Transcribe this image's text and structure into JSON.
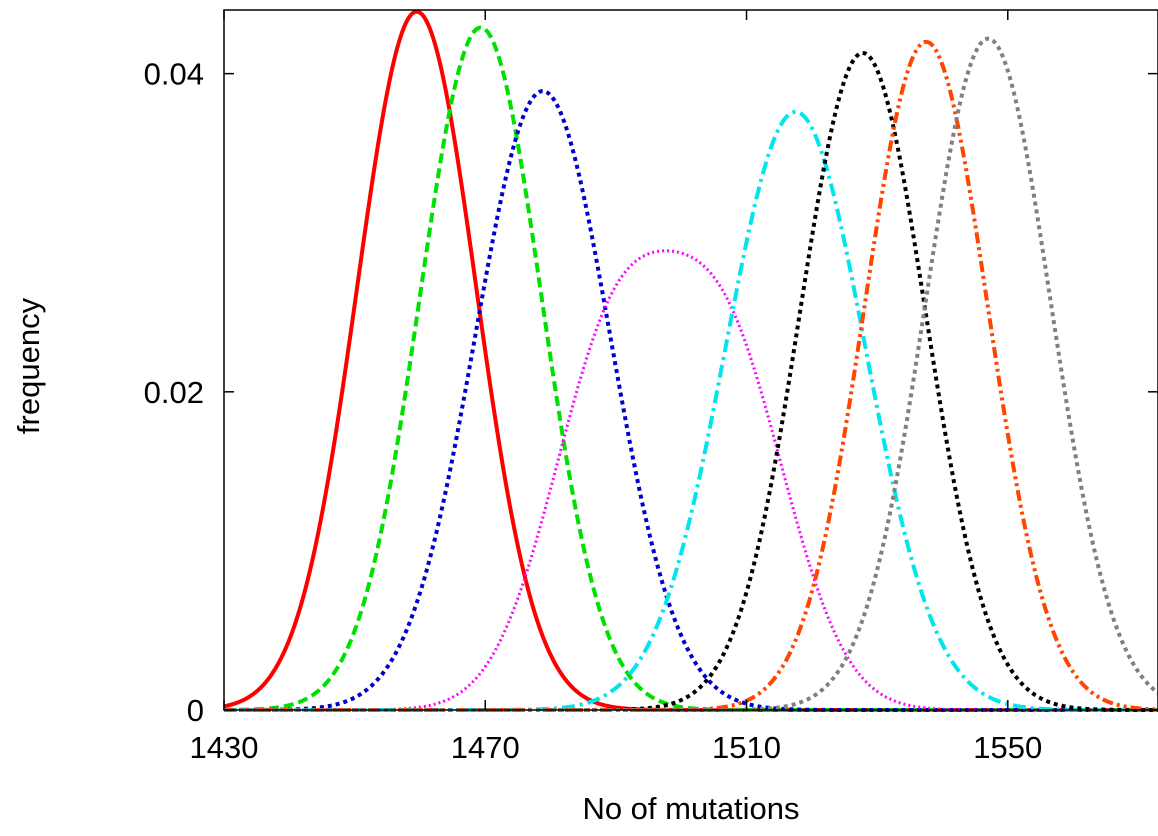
{
  "chart_data": {
    "type": "line",
    "title": "",
    "xlabel": "No of mutations",
    "ylabel": "frequency",
    "xlim": [
      1430,
      1573
    ],
    "ylim": [
      0,
      0.044
    ],
    "x_ticks": [
      {
        "value": 1430,
        "label": "1430"
      },
      {
        "value": 1470,
        "label": "1470"
      },
      {
        "value": 1510,
        "label": "1510"
      },
      {
        "value": 1550,
        "label": "1550"
      }
    ],
    "y_ticks": [
      {
        "value": 0,
        "label": "0"
      },
      {
        "value": 0.02,
        "label": "0.02"
      },
      {
        "value": 0.04,
        "label": "0.04"
      }
    ],
    "grid": false,
    "legend": "none",
    "series": [
      {
        "color": "#ff0000",
        "dash": "solid",
        "peaks": [
          {
            "mean": 1459.5,
            "sd": 9.1,
            "height": 0.0439
          }
        ]
      },
      {
        "color": "#00e000",
        "dash": "dashed",
        "peaks": [
          {
            "mean": 1469.3,
            "sd": 9.3,
            "height": 0.0429
          }
        ]
      },
      {
        "color": "#0000cc",
        "dash": "dotted",
        "peaks": [
          {
            "mean": 1478.8,
            "sd": 10.3,
            "height": 0.0389
          }
        ]
      },
      {
        "color": "#ff00ff",
        "dash": "fine-dotted",
        "peaks": [
          {
            "mean": 1489.5,
            "sd": 9.5,
            "height": 0.0223
          },
          {
            "mean": 1507.0,
            "sd": 9.5,
            "height": 0.0218
          }
        ]
      },
      {
        "color": "#00e5ee",
        "dash": "dash-dot",
        "peaks": [
          {
            "mean": 1517.5,
            "sd": 10.7,
            "height": 0.0376
          }
        ]
      },
      {
        "color": "#000000",
        "dash": "dotted",
        "peaks": [
          {
            "mean": 1527.8,
            "sd": 9.6,
            "height": 0.0413
          }
        ]
      },
      {
        "color": "#ff4500",
        "dash": "dash-dot-dot",
        "peaks": [
          {
            "mean": 1537.5,
            "sd": 9.4,
            "height": 0.042
          }
        ]
      },
      {
        "color": "#808080",
        "dash": "dotted",
        "peaks": [
          {
            "mean": 1547.0,
            "sd": 9.6,
            "height": 0.0422
          }
        ]
      }
    ]
  }
}
